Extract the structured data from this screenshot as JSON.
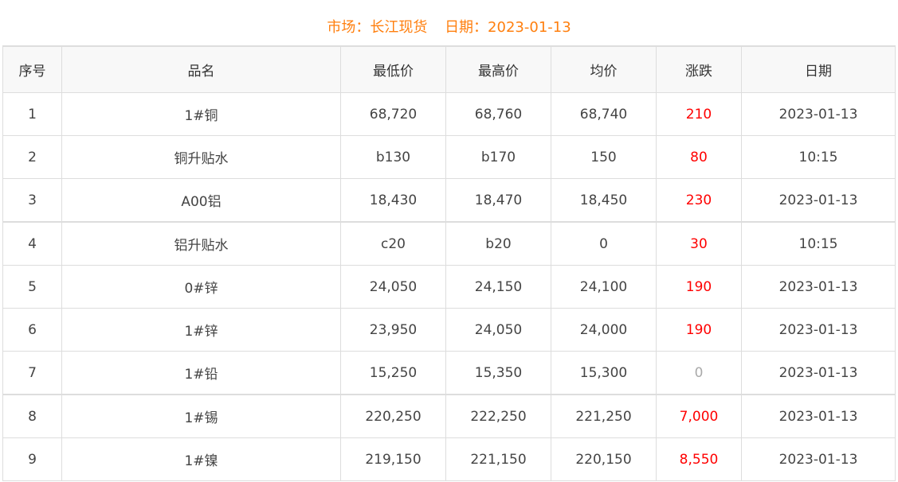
{
  "header": {
    "market": "市场：长江现货",
    "date": "日期：2023-01-13",
    "color": "#ff7f0e"
  },
  "columns": [
    "序号",
    "品名",
    "最低价",
    "最高价",
    "均价",
    "涨跌",
    "日期"
  ],
  "rows": [
    [
      "1",
      "1#铜",
      "68,720",
      "68,760",
      "68,740",
      "210",
      "2023-01-13"
    ],
    [
      "2",
      "铜升贴水",
      "b130",
      "b170",
      "150",
      "80",
      "10:15"
    ],
    [
      "3",
      "A00铝",
      "18,430",
      "18,470",
      "18,450",
      "230",
      "2023-01-13"
    ],
    [
      "4",
      "铝升贴水",
      "c20",
      "b20",
      "0",
      "30",
      "10:15"
    ],
    [
      "5",
      "0#锌",
      "24,050",
      "24,150",
      "24,100",
      "190",
      "2023-01-13"
    ],
    [
      "6",
      "1#锌",
      "23,950",
      "24,050",
      "24,000",
      "190",
      "2023-01-13"
    ],
    [
      "7",
      "1#铅",
      "15,250",
      "15,350",
      "15,300",
      "0",
      "2023-01-13"
    ],
    [
      "8",
      "1#锡",
      "220,250",
      "222,250",
      "221,250",
      "7,000",
      "2023-01-13"
    ],
    [
      "9",
      "1#镍",
      "219,150",
      "221,150",
      "220,150",
      "8,550",
      "2023-01-13"
    ]
  ],
  "colors": {
    "up": "#ff0000",
    "flat": "#aaaaaa"
  }
}
